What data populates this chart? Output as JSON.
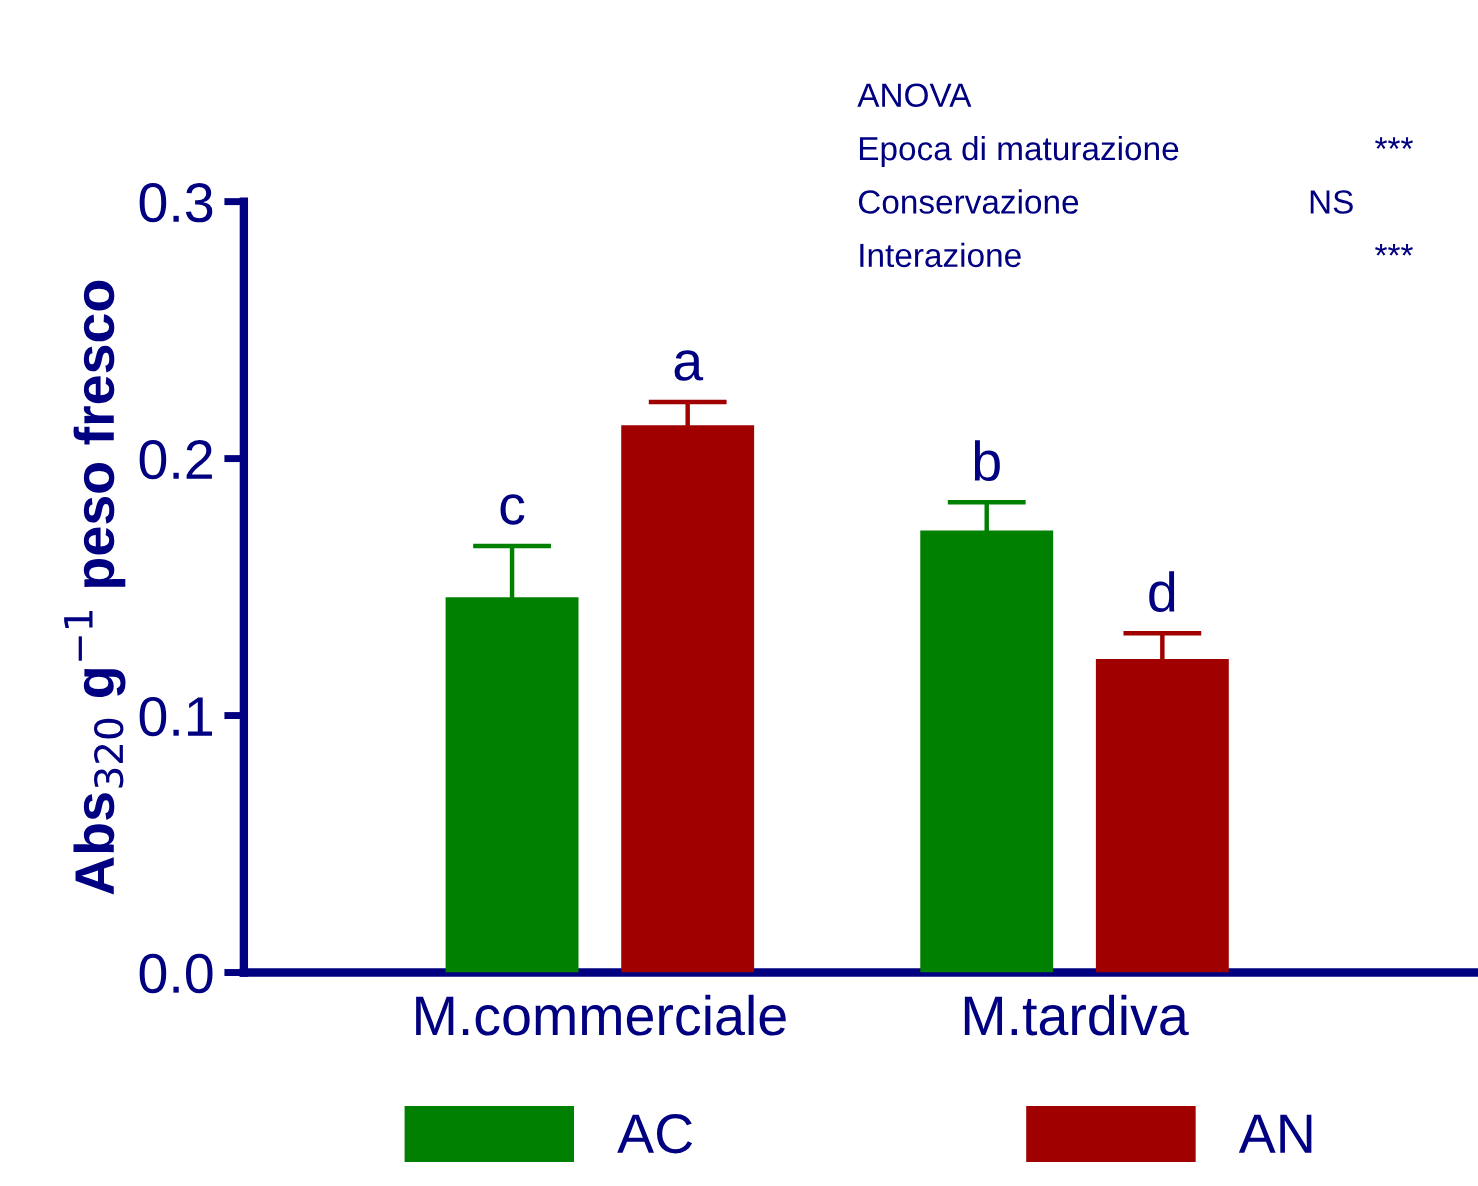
{
  "chart_data": {
    "type": "bar",
    "ylabel": "Abs$_{320}$ g$^{−1}$ peso fresco",
    "categories": [
      "M.commerciale",
      "M.tardiva"
    ],
    "series": [
      {
        "name": "AC",
        "color": "#008000",
        "values": [
          0.146,
          0.172
        ],
        "errors": [
          0.02,
          0.011
        ],
        "value_labels": [
          "c",
          "b"
        ]
      },
      {
        "name": "AN",
        "color": "#a00000",
        "values": [
          0.213,
          0.122
        ],
        "errors": [
          0.009,
          0.01
        ],
        "value_labels": [
          "a",
          "d"
        ]
      }
    ],
    "ylim": [
      0,
      0.3
    ],
    "yticks": [
      {
        "value": 0,
        "label": "0.0"
      },
      {
        "value": 0.1,
        "label": "0.1"
      },
      {
        "value": 0.2,
        "label": "0.2"
      },
      {
        "value": 0.3,
        "label": "0.3"
      }
    ],
    "annotations": [
      "ANOVA",
      "Epoca di maturazione",
      "***",
      "Conservazione",
      "NS",
      "Interazione",
      "***"
    ],
    "grid": false,
    "legend": "bottom"
  }
}
